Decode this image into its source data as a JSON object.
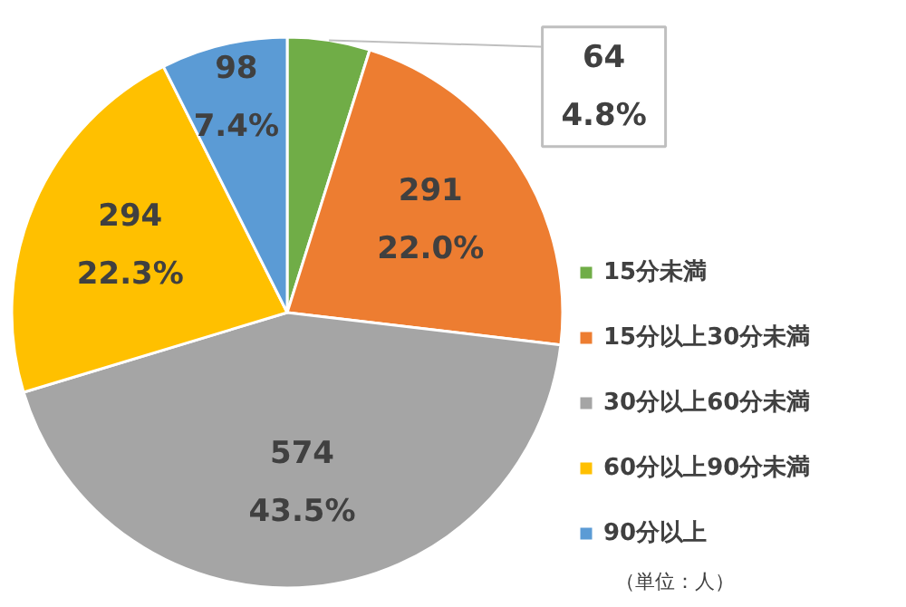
{
  "chart_data": {
    "type": "pie",
    "categories": [
      "15分未満",
      "15分以上30分未満",
      "30分以上60分未満",
      "60分以上90分未満",
      "90分以上"
    ],
    "values": [
      64,
      291,
      574,
      294,
      98
    ],
    "value_labels": [
      "64\n4.8%",
      "291\n22.0%",
      "574\n43.5%",
      "294\n22.3%",
      "98\n7.4%"
    ],
    "colors": [
      "#70ad47",
      "#ed7d31",
      "#a5a5a5",
      "#ffc000",
      "#5b9bd5"
    ],
    "legend": "right",
    "annotations": [
      "（単位：人）"
    ]
  }
}
